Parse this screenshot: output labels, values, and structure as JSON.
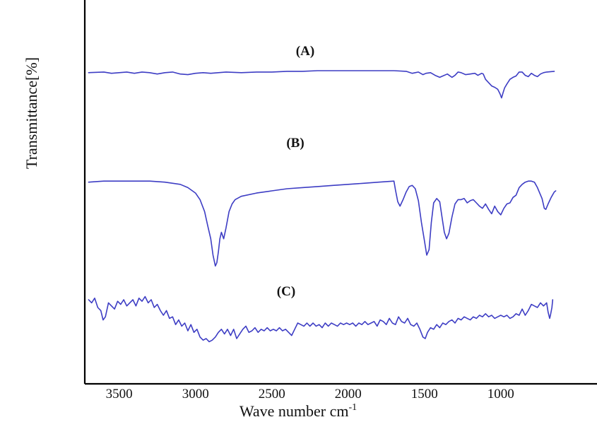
{
  "chart_data": {
    "type": "line",
    "title": "",
    "xlabel": "Wave number cm",
    "xlabel_superscript": "-1",
    "ylabel": "Transmittance[%]",
    "x_reversed": true,
    "xlim": [
      3725,
      555
    ],
    "x_ticks": [
      3500,
      3000,
      2500,
      2000,
      1500,
      1000
    ],
    "y_ticks": [],
    "grid": false,
    "legend": "none",
    "line_color": "#3d3dc4",
    "series": [
      {
        "name": "(A)",
        "points": [
          [
            3700,
            0.8
          ],
          [
            3600,
            0.81
          ],
          [
            3550,
            0.79
          ],
          [
            3500,
            0.8
          ],
          [
            3450,
            0.81
          ],
          [
            3400,
            0.79
          ],
          [
            3350,
            0.81
          ],
          [
            3300,
            0.8
          ],
          [
            3250,
            0.78
          ],
          [
            3200,
            0.8
          ],
          [
            3150,
            0.81
          ],
          [
            3100,
            0.78
          ],
          [
            3050,
            0.77
          ],
          [
            3000,
            0.79
          ],
          [
            2950,
            0.8
          ],
          [
            2900,
            0.79
          ],
          [
            2850,
            0.8
          ],
          [
            2800,
            0.81
          ],
          [
            2700,
            0.8
          ],
          [
            2600,
            0.81
          ],
          [
            2500,
            0.81
          ],
          [
            2400,
            0.82
          ],
          [
            2300,
            0.82
          ],
          [
            2200,
            0.83
          ],
          [
            2100,
            0.83
          ],
          [
            2000,
            0.83
          ],
          [
            1900,
            0.83
          ],
          [
            1800,
            0.83
          ],
          [
            1700,
            0.83
          ],
          [
            1620,
            0.82
          ],
          [
            1580,
            0.79
          ],
          [
            1560,
            0.8
          ],
          [
            1540,
            0.81
          ],
          [
            1510,
            0.77
          ],
          [
            1490,
            0.79
          ],
          [
            1460,
            0.8
          ],
          [
            1430,
            0.76
          ],
          [
            1400,
            0.73
          ],
          [
            1380,
            0.75
          ],
          [
            1350,
            0.78
          ],
          [
            1320,
            0.73
          ],
          [
            1300,
            0.76
          ],
          [
            1280,
            0.81
          ],
          [
            1260,
            0.8
          ],
          [
            1230,
            0.77
          ],
          [
            1200,
            0.78
          ],
          [
            1170,
            0.79
          ],
          [
            1150,
            0.76
          ],
          [
            1125,
            0.79
          ],
          [
            1115,
            0.78
          ],
          [
            1100,
            0.7
          ],
          [
            1080,
            0.65
          ],
          [
            1060,
            0.6
          ],
          [
            1040,
            0.58
          ],
          [
            1020,
            0.55
          ],
          [
            1005,
            0.48
          ],
          [
            995,
            0.42
          ],
          [
            985,
            0.5
          ],
          [
            975,
            0.57
          ],
          [
            960,
            0.63
          ],
          [
            940,
            0.7
          ],
          [
            920,
            0.73
          ],
          [
            900,
            0.75
          ],
          [
            880,
            0.81
          ],
          [
            860,
            0.81
          ],
          [
            840,
            0.76
          ],
          [
            820,
            0.74
          ],
          [
            800,
            0.79
          ],
          [
            780,
            0.76
          ],
          [
            760,
            0.74
          ],
          [
            740,
            0.78
          ],
          [
            720,
            0.8
          ],
          [
            700,
            0.81
          ],
          [
            650,
            0.82
          ]
        ]
      },
      {
        "name": "(B)",
        "points": [
          [
            3700,
            0.82
          ],
          [
            3600,
            0.83
          ],
          [
            3500,
            0.83
          ],
          [
            3400,
            0.83
          ],
          [
            3300,
            0.83
          ],
          [
            3200,
            0.82
          ],
          [
            3100,
            0.8
          ],
          [
            3050,
            0.77
          ],
          [
            3000,
            0.72
          ],
          [
            2970,
            0.66
          ],
          [
            2940,
            0.55
          ],
          [
            2920,
            0.42
          ],
          [
            2900,
            0.3
          ],
          [
            2885,
            0.15
          ],
          [
            2870,
            0.05
          ],
          [
            2860,
            0.08
          ],
          [
            2850,
            0.18
          ],
          [
            2840,
            0.3
          ],
          [
            2830,
            0.36
          ],
          [
            2815,
            0.3
          ],
          [
            2800,
            0.4
          ],
          [
            2780,
            0.55
          ],
          [
            2760,
            0.62
          ],
          [
            2740,
            0.66
          ],
          [
            2700,
            0.69
          ],
          [
            2600,
            0.72
          ],
          [
            2500,
            0.74
          ],
          [
            2400,
            0.76
          ],
          [
            2300,
            0.77
          ],
          [
            2200,
            0.78
          ],
          [
            2100,
            0.79
          ],
          [
            2000,
            0.8
          ],
          [
            1900,
            0.81
          ],
          [
            1800,
            0.82
          ],
          [
            1700,
            0.83
          ],
          [
            1690,
            0.75
          ],
          [
            1675,
            0.64
          ],
          [
            1660,
            0.6
          ],
          [
            1640,
            0.66
          ],
          [
            1620,
            0.73
          ],
          [
            1600,
            0.78
          ],
          [
            1580,
            0.79
          ],
          [
            1560,
            0.76
          ],
          [
            1540,
            0.65
          ],
          [
            1520,
            0.45
          ],
          [
            1500,
            0.28
          ],
          [
            1485,
            0.15
          ],
          [
            1470,
            0.2
          ],
          [
            1455,
            0.45
          ],
          [
            1440,
            0.63
          ],
          [
            1420,
            0.67
          ],
          [
            1400,
            0.64
          ],
          [
            1385,
            0.5
          ],
          [
            1370,
            0.36
          ],
          [
            1355,
            0.3
          ],
          [
            1340,
            0.35
          ],
          [
            1320,
            0.5
          ],
          [
            1300,
            0.62
          ],
          [
            1280,
            0.66
          ],
          [
            1260,
            0.66
          ],
          [
            1240,
            0.67
          ],
          [
            1220,
            0.63
          ],
          [
            1200,
            0.65
          ],
          [
            1180,
            0.66
          ],
          [
            1160,
            0.63
          ],
          [
            1140,
            0.6
          ],
          [
            1120,
            0.58
          ],
          [
            1100,
            0.62
          ],
          [
            1080,
            0.57
          ],
          [
            1060,
            0.53
          ],
          [
            1040,
            0.6
          ],
          [
            1020,
            0.55
          ],
          [
            1000,
            0.52
          ],
          [
            980,
            0.58
          ],
          [
            960,
            0.62
          ],
          [
            940,
            0.63
          ],
          [
            920,
            0.68
          ],
          [
            900,
            0.7
          ],
          [
            880,
            0.77
          ],
          [
            860,
            0.8
          ],
          [
            840,
            0.82
          ],
          [
            820,
            0.83
          ],
          [
            800,
            0.83
          ],
          [
            780,
            0.82
          ],
          [
            760,
            0.77
          ],
          [
            745,
            0.72
          ],
          [
            730,
            0.67
          ],
          [
            715,
            0.58
          ],
          [
            705,
            0.57
          ],
          [
            690,
            0.62
          ],
          [
            670,
            0.68
          ],
          [
            650,
            0.73
          ],
          [
            640,
            0.74
          ]
        ]
      },
      {
        "name": "(C)",
        "points": [
          [
            3700,
            0.6
          ],
          [
            3680,
            0.56
          ],
          [
            3660,
            0.62
          ],
          [
            3640,
            0.5
          ],
          [
            3620,
            0.46
          ],
          [
            3605,
            0.34
          ],
          [
            3590,
            0.38
          ],
          [
            3570,
            0.56
          ],
          [
            3550,
            0.52
          ],
          [
            3530,
            0.48
          ],
          [
            3510,
            0.58
          ],
          [
            3490,
            0.54
          ],
          [
            3470,
            0.6
          ],
          [
            3450,
            0.52
          ],
          [
            3430,
            0.56
          ],
          [
            3410,
            0.6
          ],
          [
            3390,
            0.52
          ],
          [
            3370,
            0.62
          ],
          [
            3350,
            0.58
          ],
          [
            3330,
            0.64
          ],
          [
            3310,
            0.56
          ],
          [
            3290,
            0.6
          ],
          [
            3270,
            0.5
          ],
          [
            3250,
            0.54
          ],
          [
            3230,
            0.46
          ],
          [
            3210,
            0.4
          ],
          [
            3190,
            0.46
          ],
          [
            3170,
            0.36
          ],
          [
            3150,
            0.38
          ],
          [
            3130,
            0.28
          ],
          [
            3110,
            0.34
          ],
          [
            3090,
            0.26
          ],
          [
            3070,
            0.3
          ],
          [
            3050,
            0.2
          ],
          [
            3030,
            0.28
          ],
          [
            3010,
            0.18
          ],
          [
            2990,
            0.22
          ],
          [
            2970,
            0.12
          ],
          [
            2950,
            0.08
          ],
          [
            2930,
            0.1
          ],
          [
            2910,
            0.06
          ],
          [
            2890,
            0.08
          ],
          [
            2870,
            0.12
          ],
          [
            2850,
            0.18
          ],
          [
            2830,
            0.22
          ],
          [
            2810,
            0.16
          ],
          [
            2790,
            0.22
          ],
          [
            2770,
            0.14
          ],
          [
            2750,
            0.22
          ],
          [
            2730,
            0.1
          ],
          [
            2710,
            0.16
          ],
          [
            2690,
            0.22
          ],
          [
            2670,
            0.26
          ],
          [
            2650,
            0.18
          ],
          [
            2630,
            0.2
          ],
          [
            2610,
            0.24
          ],
          [
            2590,
            0.18
          ],
          [
            2570,
            0.22
          ],
          [
            2550,
            0.2
          ],
          [
            2530,
            0.24
          ],
          [
            2510,
            0.2
          ],
          [
            2490,
            0.22
          ],
          [
            2470,
            0.2
          ],
          [
            2450,
            0.24
          ],
          [
            2430,
            0.2
          ],
          [
            2410,
            0.22
          ],
          [
            2390,
            0.18
          ],
          [
            2370,
            0.14
          ],
          [
            2350,
            0.22
          ],
          [
            2330,
            0.3
          ],
          [
            2310,
            0.28
          ],
          [
            2290,
            0.26
          ],
          [
            2270,
            0.3
          ],
          [
            2250,
            0.26
          ],
          [
            2230,
            0.3
          ],
          [
            2210,
            0.26
          ],
          [
            2190,
            0.28
          ],
          [
            2170,
            0.24
          ],
          [
            2150,
            0.3
          ],
          [
            2130,
            0.26
          ],
          [
            2110,
            0.3
          ],
          [
            2090,
            0.28
          ],
          [
            2070,
            0.26
          ],
          [
            2050,
            0.3
          ],
          [
            2030,
            0.28
          ],
          [
            2010,
            0.3
          ],
          [
            1990,
            0.28
          ],
          [
            1970,
            0.3
          ],
          [
            1950,
            0.26
          ],
          [
            1930,
            0.3
          ],
          [
            1910,
            0.28
          ],
          [
            1890,
            0.32
          ],
          [
            1870,
            0.28
          ],
          [
            1850,
            0.3
          ],
          [
            1830,
            0.32
          ],
          [
            1810,
            0.26
          ],
          [
            1790,
            0.34
          ],
          [
            1770,
            0.32
          ],
          [
            1750,
            0.28
          ],
          [
            1730,
            0.36
          ],
          [
            1710,
            0.3
          ],
          [
            1690,
            0.28
          ],
          [
            1670,
            0.38
          ],
          [
            1650,
            0.32
          ],
          [
            1630,
            0.3
          ],
          [
            1610,
            0.36
          ],
          [
            1590,
            0.28
          ],
          [
            1570,
            0.26
          ],
          [
            1550,
            0.3
          ],
          [
            1530,
            0.22
          ],
          [
            1510,
            0.12
          ],
          [
            1495,
            0.1
          ],
          [
            1480,
            0.18
          ],
          [
            1460,
            0.24
          ],
          [
            1440,
            0.22
          ],
          [
            1420,
            0.28
          ],
          [
            1400,
            0.24
          ],
          [
            1380,
            0.3
          ],
          [
            1360,
            0.28
          ],
          [
            1340,
            0.32
          ],
          [
            1320,
            0.34
          ],
          [
            1300,
            0.3
          ],
          [
            1280,
            0.36
          ],
          [
            1260,
            0.34
          ],
          [
            1240,
            0.38
          ],
          [
            1220,
            0.36
          ],
          [
            1200,
            0.34
          ],
          [
            1180,
            0.38
          ],
          [
            1160,
            0.36
          ],
          [
            1140,
            0.4
          ],
          [
            1120,
            0.38
          ],
          [
            1100,
            0.42
          ],
          [
            1080,
            0.38
          ],
          [
            1060,
            0.4
          ],
          [
            1040,
            0.36
          ],
          [
            1020,
            0.38
          ],
          [
            1000,
            0.4
          ],
          [
            980,
            0.38
          ],
          [
            960,
            0.4
          ],
          [
            940,
            0.36
          ],
          [
            920,
            0.38
          ],
          [
            900,
            0.42
          ],
          [
            880,
            0.4
          ],
          [
            860,
            0.48
          ],
          [
            840,
            0.4
          ],
          [
            820,
            0.46
          ],
          [
            800,
            0.54
          ],
          [
            780,
            0.52
          ],
          [
            760,
            0.5
          ],
          [
            740,
            0.56
          ],
          [
            720,
            0.52
          ],
          [
            700,
            0.56
          ],
          [
            690,
            0.44
          ],
          [
            680,
            0.36
          ],
          [
            675,
            0.4
          ],
          [
            665,
            0.5
          ],
          [
            660,
            0.6
          ]
        ]
      }
    ]
  }
}
